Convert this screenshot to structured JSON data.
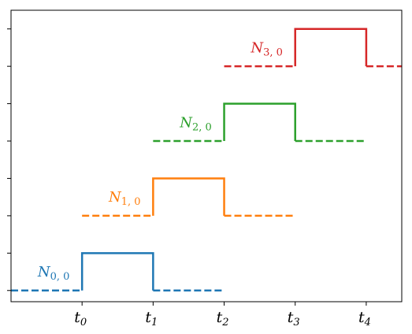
{
  "chart_data": {
    "type": "line",
    "title": "",
    "xlabel": "",
    "ylabel": "",
    "xlim": [
      -1.0,
      4.5
    ],
    "ylim": [
      -0.15,
      3.75
    ],
    "x_ticks": [
      {
        "value": 0,
        "base": "t",
        "sub": "0"
      },
      {
        "value": 1,
        "base": "t",
        "sub": "1"
      },
      {
        "value": 2,
        "base": "t",
        "sub": "2"
      },
      {
        "value": 3,
        "base": "t",
        "sub": "3"
      },
      {
        "value": 4,
        "base": "t",
        "sub": "4"
      }
    ],
    "y_ticks": [
      0,
      0.5,
      1,
      1.5,
      2,
      2.5,
      3,
      3.5
    ],
    "grid": false,
    "series": [
      {
        "name": "N0,0",
        "label_base": "N",
        "label_sub": "0, 0",
        "color": "#1f77b4",
        "label_position": [
          -0.4,
          0.25
        ],
        "dashed_segments": [
          [
            [
              -1,
              0
            ],
            [
              0,
              0
            ]
          ],
          [
            [
              1,
              0
            ],
            [
              2,
              0
            ]
          ]
        ],
        "solid_segments": [
          [
            [
              0,
              0
            ],
            [
              0,
              0.5
            ],
            [
              1,
              0.5
            ],
            [
              1,
              0
            ]
          ]
        ]
      },
      {
        "name": "N1,0",
        "label_base": "N",
        "label_sub": "1, 0",
        "color": "#ff7f0e",
        "label_position": [
          0.6,
          1.25
        ],
        "dashed_segments": [
          [
            [
              0,
              1
            ],
            [
              1,
              1
            ]
          ],
          [
            [
              2,
              1
            ],
            [
              3,
              1
            ]
          ]
        ],
        "solid_segments": [
          [
            [
              1,
              1
            ],
            [
              1,
              1.5
            ],
            [
              2,
              1.5
            ],
            [
              2,
              1
            ]
          ]
        ]
      },
      {
        "name": "N2,0",
        "label_base": "N",
        "label_sub": "2, 0",
        "color": "#2ca02c",
        "label_position": [
          1.6,
          2.25
        ],
        "dashed_segments": [
          [
            [
              1,
              2
            ],
            [
              2,
              2
            ]
          ],
          [
            [
              3,
              2
            ],
            [
              4,
              2
            ]
          ]
        ],
        "solid_segments": [
          [
            [
              2,
              2
            ],
            [
              2,
              2.5
            ],
            [
              3,
              2.5
            ],
            [
              3,
              2
            ]
          ]
        ]
      },
      {
        "name": "N3,0",
        "label_base": "N",
        "label_sub": "3, 0",
        "color": "#d62728",
        "label_position": [
          2.6,
          3.25
        ],
        "dashed_segments": [
          [
            [
              2,
              3
            ],
            [
              3,
              3
            ]
          ],
          [
            [
              4,
              3
            ],
            [
              4.5,
              3
            ]
          ]
        ],
        "solid_segments": [
          [
            [
              3,
              3
            ],
            [
              3,
              3.5
            ],
            [
              4,
              3.5
            ],
            [
              4,
              3
            ]
          ]
        ]
      }
    ]
  }
}
